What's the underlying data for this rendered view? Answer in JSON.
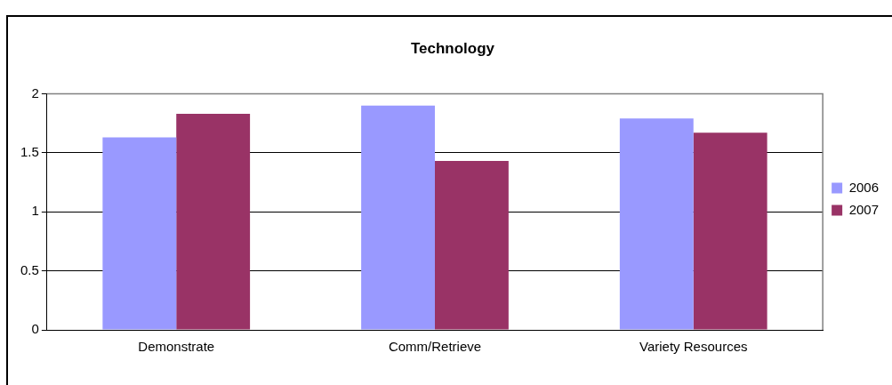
{
  "chart_data": {
    "type": "bar",
    "title": "Technology",
    "categories": [
      "Demonstrate",
      "Comm/Retrieve",
      "Variety Resources"
    ],
    "series": [
      {
        "name": "2006",
        "color": "#9999ff",
        "values": [
          1.63,
          1.9,
          1.79
        ]
      },
      {
        "name": "2007",
        "color": "#993366",
        "values": [
          1.83,
          1.43,
          1.67
        ]
      }
    ],
    "ylim": [
      0,
      2
    ],
    "yticks": [
      0,
      0.5,
      1,
      1.5,
      2
    ],
    "grid": "y",
    "legend": "right"
  }
}
